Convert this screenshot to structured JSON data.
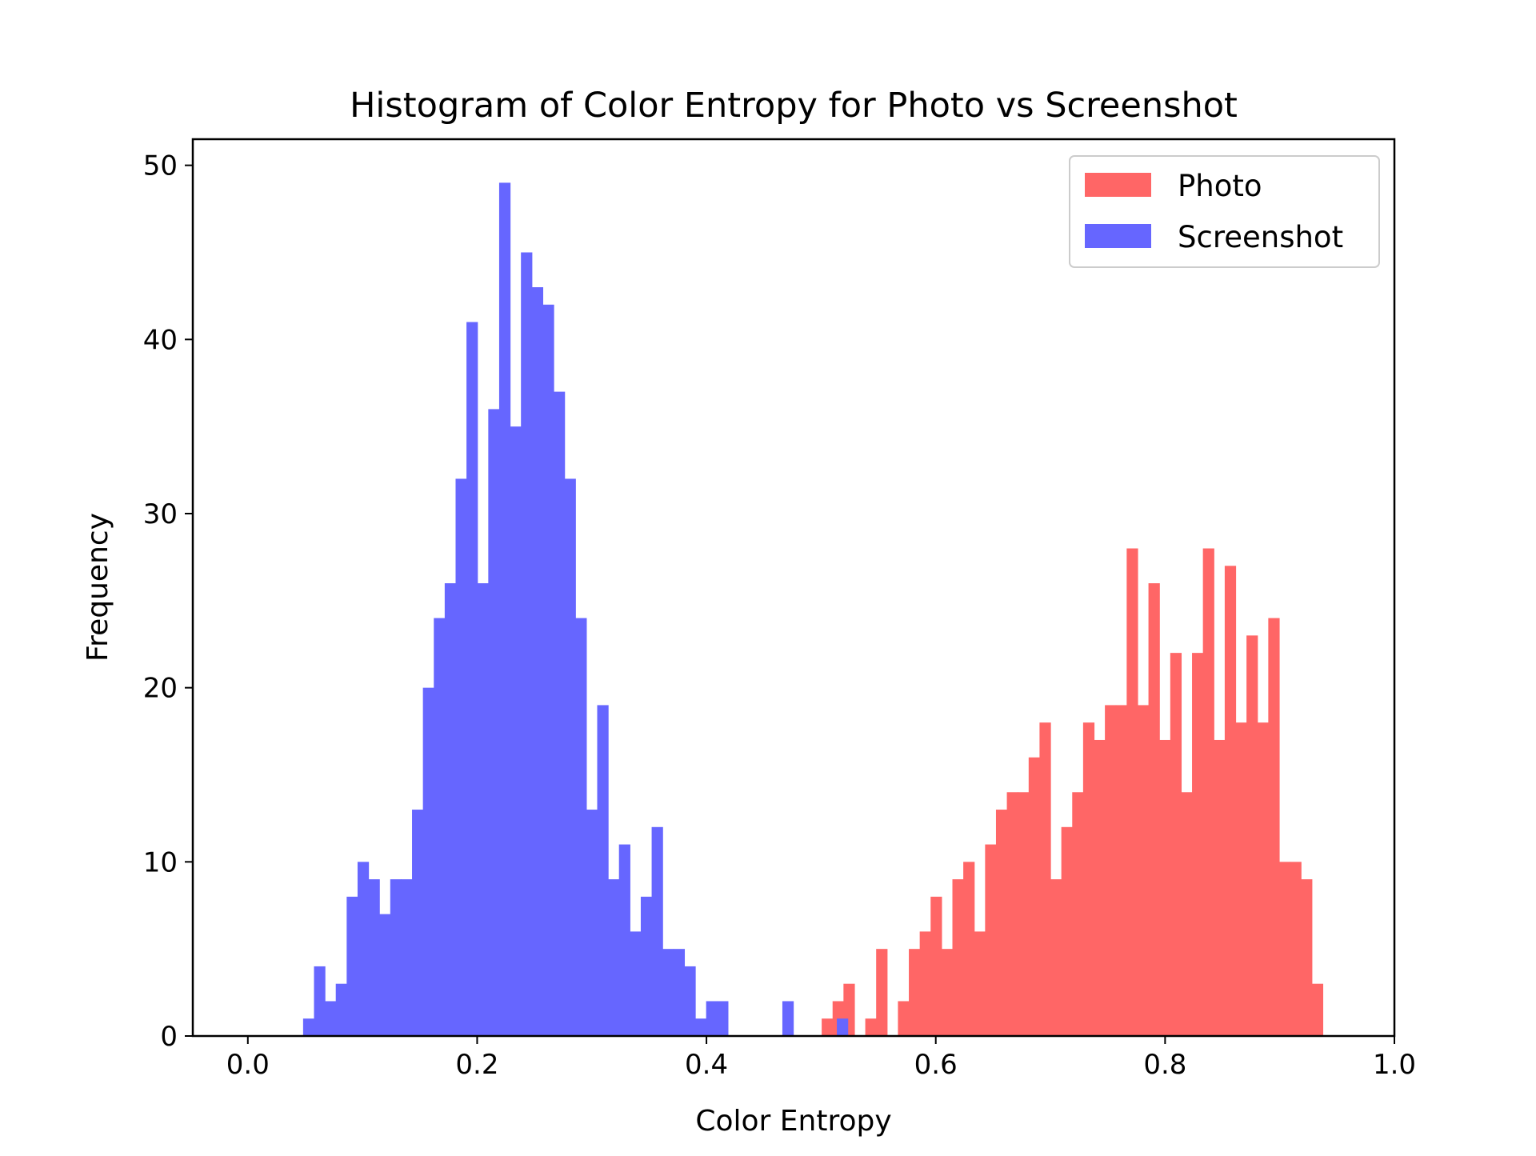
{
  "chart_data": {
    "type": "bar",
    "title": "Histogram of Color Entropy for Photo vs Screenshot",
    "xlabel": "Color Entropy",
    "ylabel": "Frequency",
    "xlim": [
      -0.048,
      1.0
    ],
    "ylim": [
      0,
      51.5
    ],
    "xticks": [
      "0.0",
      "0.2",
      "0.4",
      "0.6",
      "0.8",
      "1.0"
    ],
    "yticks": [
      "0",
      "10",
      "20",
      "30",
      "40",
      "50"
    ],
    "bin_width": 0.0095,
    "legend": {
      "position": "top-right",
      "entries": [
        "Photo",
        "Screenshot"
      ]
    },
    "series": [
      {
        "name": "Photo",
        "color": "#ff6666",
        "bin_start": 0.5005,
        "values": [
          1,
          2,
          3,
          0,
          1,
          5,
          0,
          2,
          5,
          6,
          8,
          5,
          9,
          10,
          6,
          11,
          13,
          14,
          14,
          16,
          18,
          9,
          12,
          14,
          18,
          17,
          19,
          19,
          28,
          19,
          26,
          17,
          22,
          14,
          22,
          28,
          17,
          27,
          18,
          23,
          18,
          24,
          10,
          10,
          9,
          3
        ]
      },
      {
        "name": "Screenshot",
        "color": "#6666ff",
        "bin_start": 0.0482,
        "values": [
          1,
          4,
          2,
          3,
          8,
          10,
          9,
          7,
          9,
          9,
          13,
          20,
          24,
          26,
          32,
          41,
          26,
          36,
          49,
          35,
          45,
          43,
          42,
          37,
          32,
          24,
          13,
          19,
          9,
          11,
          6,
          8,
          12,
          5,
          5,
          4,
          1,
          2,
          2,
          0,
          0,
          0,
          0,
          0,
          2,
          0,
          0,
          0,
          0,
          1
        ]
      }
    ]
  }
}
